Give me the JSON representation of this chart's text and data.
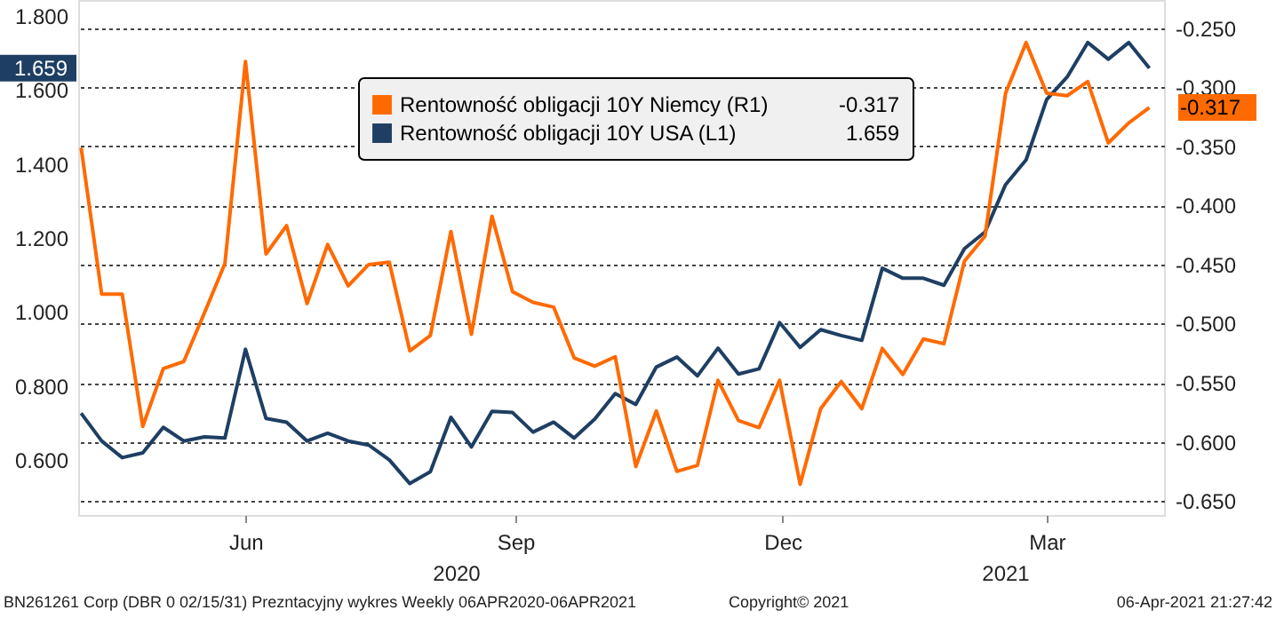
{
  "chart_data": {
    "type": "line",
    "x": [
      "2020-04-06",
      "2020-04-13",
      "2020-04-20",
      "2020-04-27",
      "2020-05-04",
      "2020-05-11",
      "2020-05-18",
      "2020-05-25",
      "2020-06-01",
      "2020-06-08",
      "2020-06-15",
      "2020-06-22",
      "2020-06-29",
      "2020-07-06",
      "2020-07-13",
      "2020-07-20",
      "2020-07-27",
      "2020-08-03",
      "2020-08-10",
      "2020-08-17",
      "2020-08-24",
      "2020-08-31",
      "2020-09-07",
      "2020-09-14",
      "2020-09-21",
      "2020-09-28",
      "2020-10-05",
      "2020-10-12",
      "2020-10-19",
      "2020-10-26",
      "2020-11-02",
      "2020-11-09",
      "2020-11-16",
      "2020-11-23",
      "2020-11-30",
      "2020-12-07",
      "2020-12-14",
      "2020-12-21",
      "2020-12-28",
      "2021-01-04",
      "2021-01-11",
      "2021-01-18",
      "2021-01-25",
      "2021-02-01",
      "2021-02-08",
      "2021-02-15",
      "2021-02-22",
      "2021-03-01",
      "2021-03-08",
      "2021-03-15",
      "2021-03-22",
      "2021-03-29",
      "2021-04-05"
    ],
    "series": [
      {
        "name": "Rentowność obligacji 10Y Niemcy (R1)",
        "color": "#ff6a00",
        "axis": "y2",
        "values": [
          -0.351,
          -0.475,
          -0.475,
          -0.587,
          -0.538,
          -0.532,
          -0.491,
          -0.449,
          -0.278,
          -0.441,
          -0.417,
          -0.483,
          -0.433,
          -0.468,
          -0.45,
          -0.448,
          -0.523,
          -0.51,
          -0.422,
          -0.509,
          -0.409,
          -0.473,
          -0.482,
          -0.486,
          -0.529,
          -0.536,
          -0.528,
          -0.621,
          -0.574,
          -0.625,
          -0.62,
          -0.548,
          -0.582,
          -0.588,
          -0.548,
          -0.636,
          -0.572,
          -0.549,
          -0.572,
          -0.521,
          -0.543,
          -0.513,
          -0.517,
          -0.447,
          -0.426,
          -0.305,
          -0.262,
          -0.305,
          -0.307,
          -0.295,
          -0.347,
          -0.33,
          -0.317
        ]
      },
      {
        "name": "Rentowność obligacji 10Y USA (L1)",
        "color": "#1e3f63",
        "axis": "y",
        "values": [
          0.726,
          0.651,
          0.606,
          0.619,
          0.688,
          0.651,
          0.662,
          0.659,
          0.899,
          0.712,
          0.702,
          0.651,
          0.672,
          0.651,
          0.64,
          0.6,
          0.536,
          0.568,
          0.715,
          0.635,
          0.731,
          0.728,
          0.675,
          0.702,
          0.659,
          0.71,
          0.779,
          0.75,
          0.851,
          0.878,
          0.827,
          0.902,
          0.832,
          0.846,
          0.971,
          0.904,
          0.952,
          0.936,
          0.923,
          1.118,
          1.091,
          1.091,
          1.072,
          1.171,
          1.216,
          1.344,
          1.411,
          1.574,
          1.635,
          1.728,
          1.683,
          1.728,
          1.659
        ]
      }
    ],
    "xlim": [
      "2020-04-05",
      "2021-04-10"
    ],
    "xticks": [
      {
        "value": "2020-06-01",
        "label": "Jun"
      },
      {
        "value": "2020-09-01",
        "label": "Sep"
      },
      {
        "value": "2020-12-01",
        "label": "Dec"
      },
      {
        "value": "2021-03-01",
        "label": "Mar"
      }
    ],
    "ylim": [
      0.451,
      1.843
    ],
    "yticks": [
      {
        "value": 0.6,
        "label": "0.600"
      },
      {
        "value": 0.8,
        "label": "0.800"
      },
      {
        "value": 1.0,
        "label": "1.000"
      },
      {
        "value": 1.2,
        "label": "1.200"
      },
      {
        "value": 1.4,
        "label": "1.400"
      },
      {
        "value": 1.6,
        "label": "1.600"
      },
      {
        "value": 1.659,
        "label": "1.659"
      },
      {
        "value": 1.8,
        "label": "1.800"
      }
    ],
    "y2lim": [
      -0.662,
      -0.226
    ],
    "y2ticks": [
      {
        "value": -0.65,
        "label": "-0.650"
      },
      {
        "value": -0.6,
        "label": "-0.600"
      },
      {
        "value": -0.55,
        "label": "-0.550"
      },
      {
        "value": -0.5,
        "label": "-0.500"
      },
      {
        "value": -0.45,
        "label": "-0.450"
      },
      {
        "value": -0.4,
        "label": "-0.400"
      },
      {
        "value": -0.35,
        "label": "-0.350"
      },
      {
        "value": -0.317,
        "label": "-0.317"
      },
      {
        "value": -0.3,
        "label": "-0.300"
      },
      {
        "value": -0.25,
        "label": "-0.250"
      }
    ],
    "grid": true,
    "legend": "top",
    "annotations": [
      "2020",
      "2021",
      "BN261261 Corp (DBR 0 02/15/31) Prezntacyjny wykres  Weekly 06APR2020-06APR2021",
      "Copyright© 2021",
      "06-Apr-2021 21:27:42"
    ]
  }
}
